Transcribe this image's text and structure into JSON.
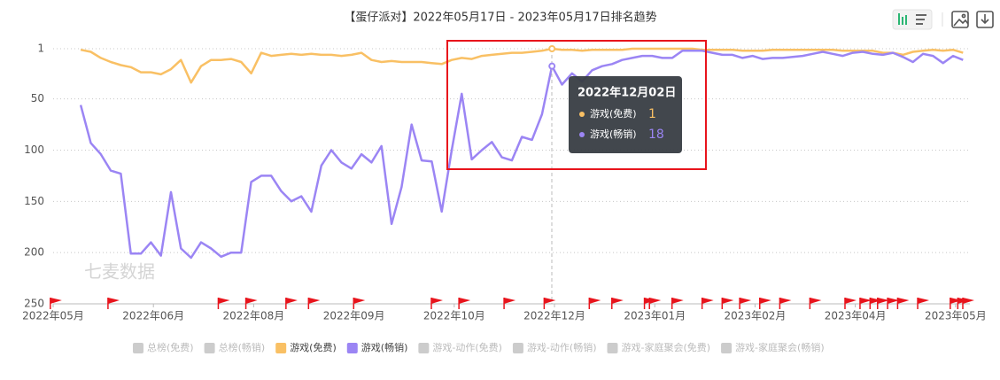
{
  "chart_data": {
    "type": "line",
    "title": "【蛋仔派对】2022年05月17日 - 2023年05月17日排名趋势",
    "watermark": "七麦数据",
    "x": [
      "2022年05月28日",
      "2022年06月01日",
      "2022年06月05日",
      "2022年06月09日",
      "2022年06月13日",
      "2022年06月17日",
      "2022年06月21日",
      "2022年06月25日",
      "2022年06月29日",
      "2022年07月03日",
      "2022年07月07日",
      "2022年07月11日",
      "2022年07月15日",
      "2022年07月19日",
      "2022年07月23日",
      "2022年07月27日",
      "2022年07月31日",
      "2022年08月04日",
      "2022年08月08日",
      "2022年08月12日",
      "2022年08月16日",
      "2022年08月20日",
      "2022年08月24日",
      "2022年08月28日",
      "2022年09月01日",
      "2022年09月05日",
      "2022年09月09日",
      "2022年09月13日",
      "2022年09月17日",
      "2022年09月21日",
      "2022年09月25日",
      "2022年09月29日",
      "2022年10月03日",
      "2022年10月07日",
      "2022年10月11日",
      "2022年10月15日",
      "2022年10月19日",
      "2022年10月23日",
      "2022年10月27日",
      "2022年10月31日",
      "2022年11月04日",
      "2022年11月08日",
      "2022年11月12日",
      "2022年11月16日",
      "2022年11月20日",
      "2022年11月24日",
      "2022年11月28日",
      "2022年12月02日",
      "2022年12月06日",
      "2022年12月10日",
      "2022年12月14日",
      "2022年12月18日",
      "2022年12月22日",
      "2022年12月26日",
      "2022年12月30日",
      "2023年01月03日",
      "2023年01月07日",
      "2023年01月11日",
      "2023年01月15日",
      "2023年01月19日",
      "2023年01月23日",
      "2023年01月27日",
      "2023年01月31日",
      "2023年02月04日",
      "2023年02月08日",
      "2023年02月12日",
      "2023年02月16日",
      "2023年02月20日",
      "2023年02月24日",
      "2023年02月28日",
      "2023年03月04日",
      "2023年03月08日",
      "2023年03月12日",
      "2023年03月16日",
      "2023年03月20日",
      "2023年03月24日",
      "2023年03月28日",
      "2023年04月01日",
      "2023年04月05日",
      "2023年04月09日",
      "2023年04月13日",
      "2023年04月17日",
      "2023年04月21日",
      "2023年04月25日",
      "2023年04月29日",
      "2023年05月03日",
      "2023年05月07日",
      "2023年05月11日",
      "2023年05月15日"
    ],
    "xlim": [
      "2022年05月17日",
      "2023年05月17日"
    ],
    "xticks": [
      {
        "value": "2022年05月17日",
        "label": "2022年05月"
      },
      {
        "value": "2022年06月26日",
        "label": "2022年06月"
      },
      {
        "value": "2022年08月05日",
        "label": "2022年08月"
      },
      {
        "value": "2022年09月14日",
        "label": "2022年09月"
      },
      {
        "value": "2022年10月24日",
        "label": "2022年10月"
      },
      {
        "value": "2022年12月03日",
        "label": "2022年12月"
      },
      {
        "value": "2023年01月12日",
        "label": "2023年01月"
      },
      {
        "value": "2023年02月21日",
        "label": "2023年02月"
      },
      {
        "value": "2023年04月02日",
        "label": "2023年04月"
      },
      {
        "value": "2023年05月12日",
        "label": "2023年05月"
      }
    ],
    "ylim": [
      1,
      250
    ],
    "y_inverted": true,
    "yticks": [
      1,
      50,
      100,
      150,
      200,
      250
    ],
    "grid": true,
    "series": [
      {
        "name": "总榜(免费)",
        "visible": false
      },
      {
        "name": "总榜(畅销)",
        "visible": false
      },
      {
        "name": "游戏(免费)",
        "visible": true,
        "color": "#f9c064",
        "values": [
          2,
          4,
          10,
          14,
          17,
          19,
          24,
          24,
          26,
          21,
          12,
          34,
          18,
          12,
          12,
          11,
          14,
          25,
          5,
          8,
          7,
          6,
          7,
          6,
          7,
          7,
          8,
          7,
          5,
          12,
          14,
          13,
          14,
          14,
          14,
          15,
          16,
          12,
          10,
          11,
          8,
          7,
          6,
          5,
          5,
          4,
          3,
          1,
          2,
          2,
          3,
          2,
          2,
          2,
          2,
          1,
          1,
          1,
          1,
          1,
          1,
          1,
          2,
          2,
          2,
          2,
          3,
          3,
          3,
          2,
          2,
          2,
          2,
          2,
          2,
          2,
          3,
          3,
          3,
          3,
          5,
          5,
          7,
          4,
          3,
          2,
          3,
          2,
          5
        ]
      },
      {
        "name": "游戏(畅销)",
        "visible": true,
        "color": "#9b85f4",
        "values": [
          56,
          93,
          104,
          120,
          123,
          201,
          201,
          190,
          203,
          141,
          196,
          205,
          190,
          196,
          204,
          200,
          200,
          131,
          125,
          125,
          140,
          150,
          145,
          160,
          115,
          100,
          112,
          118,
          104,
          112,
          96,
          172,
          136,
          75,
          110,
          111,
          160,
          100,
          45,
          109,
          100,
          92,
          107,
          110,
          87,
          90,
          65,
          18,
          36,
          25,
          33,
          22,
          18,
          16,
          12,
          10,
          8,
          8,
          10,
          10,
          3,
          3,
          3,
          5,
          7,
          7,
          10,
          8,
          11,
          10,
          10,
          9,
          8,
          6,
          4,
          6,
          8,
          5,
          4,
          6,
          7,
          5,
          9,
          14,
          6,
          8,
          15,
          8,
          12
        ]
      },
      {
        "name": "游戏-动作(免费)",
        "visible": false
      },
      {
        "name": "游戏-动作(畅销)",
        "visible": false
      },
      {
        "name": "游戏-家庭聚会(免费)",
        "visible": false
      },
      {
        "name": "游戏-家庭聚会(畅销)",
        "visible": false
      }
    ],
    "events": [
      "2022年05月18日",
      "2022年06月10日",
      "2022年07月24日",
      "2022年08月04日",
      "2022年08月20日",
      "2022年08月29日",
      "2022年09月16日",
      "2022年10月17日",
      "2022年10月28日",
      "2022年11月15日",
      "2022年12月01日",
      "2022年12月19日",
      "2022年12月28日",
      "2023年01月10日",
      "2023年01月12日",
      "2023年01月21日",
      "2023年02月02日",
      "2023年02月10日",
      "2023年02月17日",
      "2023年02月25日",
      "2023年03月05日",
      "2023年03月17日",
      "2023年03月31日",
      "2023年04月06日",
      "2023年04月10日",
      "2023年04月13日",
      "2023年04月17日",
      "2023年04月21日",
      "2023年04月29日",
      "2023年05月12日",
      "2023年05月15日",
      "2023年05月17日"
    ],
    "event_color": "#e8141c"
  }
}
